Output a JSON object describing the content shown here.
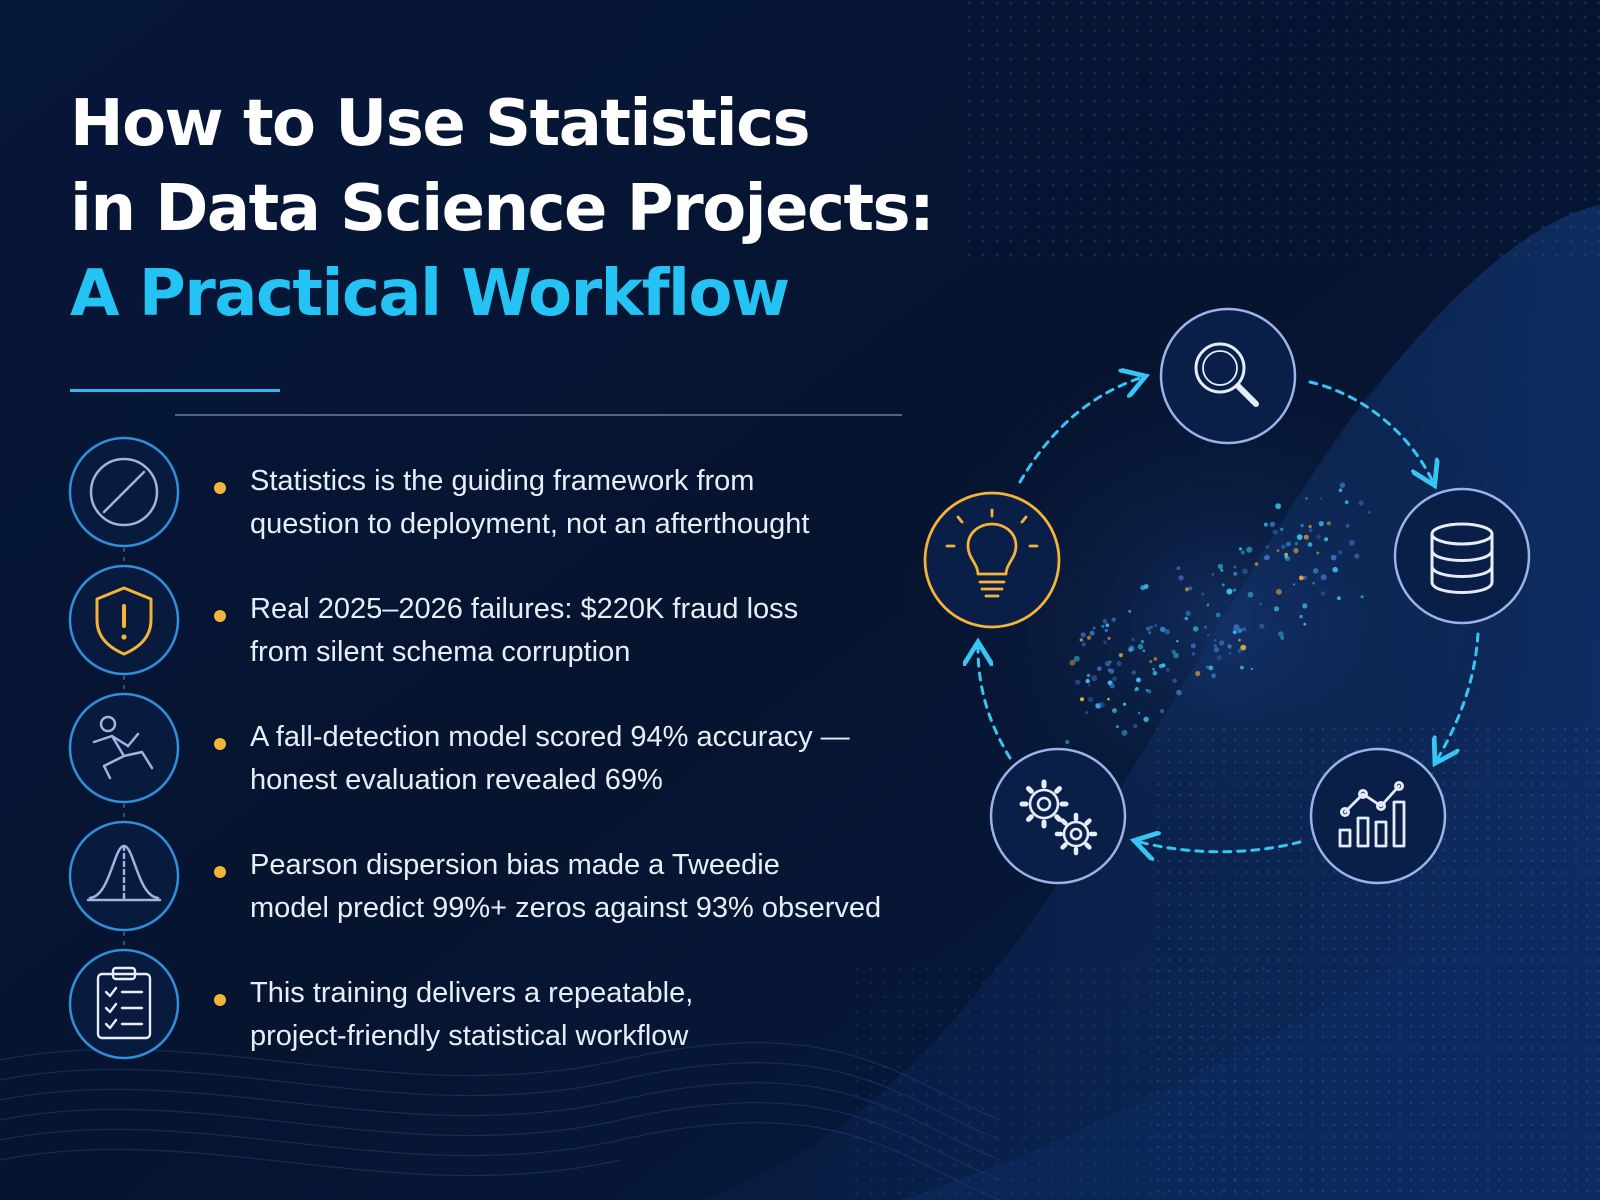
{
  "title": {
    "line1": "How to Use Statistics",
    "line2": "in Data Science Projects:",
    "line3": "A Practical Workflow"
  },
  "bullets": [
    {
      "icon": "compass-icon",
      "line1": "Statistics is the guiding framework from",
      "line2": "question to deployment, not an afterthought"
    },
    {
      "icon": "shield-warning-icon",
      "line1": "Real 2025–2026 failures: $220K fraud loss",
      "line2": "from silent schema corruption"
    },
    {
      "icon": "falling-person-icon",
      "line1": "A fall-detection model scored 94% accuracy —",
      "line2": "honest evaluation revealed 69%"
    },
    {
      "icon": "bell-curve-icon",
      "line1": "Pearson dispersion bias made a Tweedie",
      "line2": "model predict 99%+ zeros against 93% observed"
    },
    {
      "icon": "checklist-clipboard-icon",
      "line1": "This training delivers a repeatable,",
      "line2": "project-friendly statistical workflow"
    }
  ],
  "cycle_nodes": [
    "magnifier-icon",
    "database-icon",
    "bar-line-chart-icon",
    "gears-icon",
    "lightbulb-icon"
  ],
  "colors": {
    "background": "#06142f",
    "accent_cyan": "#25c3f3",
    "accent_gold": "#f4b339",
    "icon_stroke": "#8fa8dc",
    "text": "#e8eef8"
  }
}
